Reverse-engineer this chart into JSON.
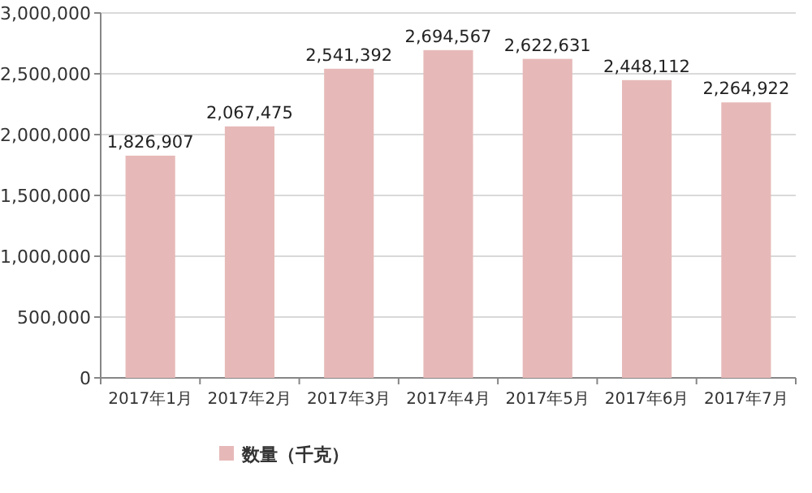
{
  "chart_data": {
    "type": "bar",
    "categories": [
      "2017年1月",
      "2017年2月",
      "2017年3月",
      "2017年4月",
      "2017年5月",
      "2017年6月",
      "2017年7月"
    ],
    "series": [
      {
        "name": "数量（千克）",
        "color": "#e6b9b8",
        "values": [
          1826907,
          2067475,
          2541392,
          2694567,
          2622631,
          2448112,
          2264922
        ],
        "value_labels": [
          "1,826,907",
          "2,067,475",
          "2,541,392",
          "2,694,567",
          "2,622,631",
          "2,448,112",
          "2,264,922"
        ]
      }
    ],
    "ylim": [
      0,
      3000000
    ],
    "yticks": [
      {
        "value": 0,
        "label": "0"
      },
      {
        "value": 500000,
        "label": "500,000"
      },
      {
        "value": 1000000,
        "label": "1,000,000"
      },
      {
        "value": 1500000,
        "label": "1,500,000"
      },
      {
        "value": 2000000,
        "label": "2,000,000"
      },
      {
        "value": 2500000,
        "label": "2,500,000"
      },
      {
        "value": 3000000,
        "label": "3,000,000"
      }
    ],
    "grid": "y",
    "legend": "bottom"
  }
}
